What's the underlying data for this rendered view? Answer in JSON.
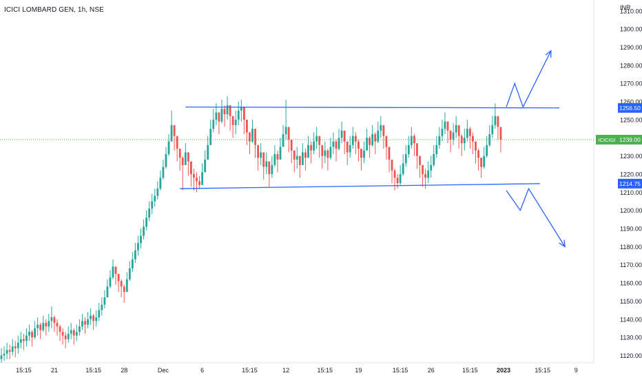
{
  "title": "ICICI LOMBARD GEN, 1h, NSE",
  "currency": "INR",
  "colors": {
    "up": "#26a69a",
    "down": "#ef5350",
    "trend": "#2962ff",
    "last_price": "#4caf50",
    "axis_text": "#131722"
  },
  "chart_data": {
    "type": "candlestick",
    "y_ticks": [
      1120,
      1130,
      1140,
      1150,
      1160,
      1170,
      1180,
      1190,
      1200,
      1210,
      1220,
      1230,
      1240,
      1250,
      1260,
      1270,
      1280,
      1290,
      1300,
      1310
    ],
    "y_tick_labels": [
      "1120.00",
      "1130.00",
      "1140.00",
      "1150.00",
      "1160.00",
      "1170.00",
      "1180.00",
      "1190.00",
      "1200.00",
      "1210.00",
      "1220.00",
      "1230.00",
      "1240.00",
      "1250.00",
      "1260.00",
      "1270.00",
      "1280.00",
      "1290.00",
      "1300.00",
      "1310.00"
    ],
    "ylim": [
      1116,
      1316
    ],
    "x_tick_labels": [
      "15:15",
      "21",
      "15:15",
      "28",
      "Dec",
      "6",
      "15:15",
      "12",
      "15:15",
      "19",
      "15:15",
      "26",
      "15:15",
      "2023",
      "15:15",
      "9"
    ],
    "x_tick_bold": [
      false,
      false,
      false,
      false,
      false,
      false,
      false,
      false,
      false,
      false,
      false,
      false,
      false,
      true,
      false,
      false
    ],
    "x_tick_index": [
      8,
      19,
      33,
      44,
      58,
      72,
      89,
      102,
      116,
      128,
      143,
      154,
      168,
      180,
      194,
      206
    ],
    "price_labels": [
      {
        "text": "1256.50",
        "value": 1256.5,
        "style": "trend"
      },
      {
        "text": "1214.75",
        "value": 1214.75,
        "style": "trend"
      },
      {
        "symbol": "ICICIGI",
        "text": "1239.00",
        "value": 1239,
        "style": "last"
      }
    ],
    "last_price": 1239,
    "resistance": {
      "start_bar": 66,
      "start": 1257,
      "end_bar": 200,
      "end": 1256.5
    },
    "support": {
      "start_bar": 64,
      "start": 1212,
      "end_bar": 193,
      "end": 1214.75
    },
    "arrow_up": {
      "bars": [
        181,
        184,
        187,
        197
      ],
      "values": [
        1257,
        1270,
        1257,
        1288
      ]
    },
    "arrow_down": {
      "bars": [
        181,
        186,
        189,
        202
      ],
      "values": [
        1211,
        1200,
        1212,
        1180
      ]
    },
    "closes": [
      1120,
      1121,
      1123,
      1122,
      1125,
      1124,
      1127,
      1129,
      1128,
      1131,
      1133,
      1130,
      1135,
      1137,
      1134,
      1138,
      1136,
      1139,
      1141,
      1138,
      1136,
      1133,
      1131,
      1129,
      1132,
      1134,
      1131,
      1133,
      1136,
      1139,
      1137,
      1140,
      1142,
      1139,
      1141,
      1145,
      1148,
      1152,
      1158,
      1163,
      1169,
      1165,
      1161,
      1158,
      1155,
      1162,
      1168,
      1173,
      1178,
      1182,
      1186,
      1191,
      1196,
      1201,
      1205,
      1208,
      1212,
      1218,
      1224,
      1231,
      1238,
      1247,
      1241,
      1234,
      1229,
      1225,
      1232,
      1227,
      1220,
      1218,
      1216,
      1214,
      1221,
      1228,
      1236,
      1245,
      1250,
      1254,
      1249,
      1256,
      1253,
      1258,
      1252,
      1247,
      1250,
      1255,
      1257,
      1250,
      1243,
      1238,
      1245,
      1236,
      1229,
      1232,
      1224,
      1227,
      1220,
      1225,
      1231,
      1228,
      1235,
      1242,
      1246,
      1239,
      1233,
      1228,
      1230,
      1225,
      1232,
      1229,
      1236,
      1233,
      1238,
      1241,
      1236,
      1230,
      1233,
      1229,
      1235,
      1238,
      1234,
      1240,
      1244,
      1238,
      1232,
      1236,
      1241,
      1238,
      1234,
      1229,
      1233,
      1240,
      1236,
      1242,
      1238,
      1244,
      1247,
      1241,
      1235,
      1228,
      1222,
      1218,
      1215,
      1220,
      1226,
      1231,
      1236,
      1241,
      1237,
      1230,
      1225,
      1220,
      1218,
      1222,
      1225,
      1231,
      1236,
      1241,
      1245,
      1249,
      1244,
      1239,
      1243,
      1247,
      1241,
      1237,
      1240,
      1245,
      1241,
      1238,
      1233,
      1229,
      1224,
      1230,
      1236,
      1242,
      1247,
      1252,
      1246,
      1239
    ],
    "lows": [
      1116,
      1117,
      1118,
      1118,
      1120,
      1119,
      1121,
      1124,
      1123,
      1125,
      1128,
      1125,
      1129,
      1131,
      1129,
      1133,
      1131,
      1133,
      1135,
      1133,
      1131,
      1128,
      1126,
      1124,
      1127,
      1129,
      1126,
      1128,
      1131,
      1134,
      1132,
      1135,
      1137,
      1134,
      1136,
      1139,
      1142,
      1146,
      1152,
      1157,
      1162,
      1159,
      1155,
      1152,
      1149,
      1156,
      1161,
      1166,
      1171,
      1175,
      1179,
      1184,
      1189,
      1194,
      1198,
      1202,
      1206,
      1211,
      1217,
      1223,
      1230,
      1238,
      1233,
      1227,
      1222,
      1211,
      1225,
      1219,
      1213,
      1211,
      1210,
      1212,
      1214,
      1221,
      1229,
      1237,
      1243,
      1247,
      1242,
      1248,
      1246,
      1250,
      1244,
      1240,
      1242,
      1247,
      1249,
      1242,
      1236,
      1231,
      1237,
      1229,
      1222,
      1225,
      1217,
      1220,
      1213,
      1218,
      1224,
      1221,
      1228,
      1235,
      1239,
      1232,
      1226,
      1221,
      1223,
      1218,
      1225,
      1222,
      1229,
      1226,
      1231,
      1234,
      1229,
      1223,
      1226,
      1222,
      1228,
      1231,
      1227,
      1233,
      1237,
      1231,
      1225,
      1229,
      1234,
      1231,
      1227,
      1222,
      1226,
      1233,
      1229,
      1235,
      1231,
      1237,
      1240,
      1234,
      1228,
      1221,
      1215,
      1211,
      1212,
      1214,
      1219,
      1224,
      1229,
      1234,
      1230,
      1223,
      1218,
      1213,
      1212,
      1215,
      1218,
      1224,
      1229,
      1234,
      1238,
      1242,
      1237,
      1232,
      1236,
      1240,
      1234,
      1230,
      1233,
      1238,
      1234,
      1231,
      1226,
      1222,
      1218,
      1223,
      1229,
      1235,
      1240,
      1245,
      1239,
      1232
    ],
    "highs": [
      1124,
      1125,
      1127,
      1126,
      1129,
      1128,
      1131,
      1133,
      1132,
      1135,
      1137,
      1134,
      1139,
      1141,
      1138,
      1142,
      1140,
      1143,
      1147,
      1142,
      1140,
      1137,
      1135,
      1133,
      1136,
      1138,
      1135,
      1137,
      1140,
      1143,
      1141,
      1144,
      1146,
      1143,
      1145,
      1149,
      1152,
      1156,
      1162,
      1167,
      1173,
      1169,
      1165,
      1162,
      1159,
      1166,
      1172,
      1177,
      1182,
      1186,
      1190,
      1195,
      1200,
      1205,
      1209,
      1212,
      1216,
      1222,
      1228,
      1235,
      1242,
      1255,
      1246,
      1239,
      1234,
      1230,
      1237,
      1232,
      1225,
      1223,
      1221,
      1219,
      1226,
      1233,
      1241,
      1250,
      1256,
      1259,
      1254,
      1261,
      1258,
      1263,
      1257,
      1252,
      1255,
      1260,
      1261,
      1255,
      1248,
      1243,
      1250,
      1241,
      1234,
      1237,
      1229,
      1232,
      1225,
      1230,
      1236,
      1233,
      1240,
      1247,
      1261,
      1244,
      1238,
      1233,
      1235,
      1230,
      1237,
      1234,
      1241,
      1238,
      1243,
      1246,
      1241,
      1235,
      1238,
      1234,
      1240,
      1243,
      1239,
      1245,
      1249,
      1243,
      1237,
      1241,
      1246,
      1243,
      1239,
      1234,
      1238,
      1245,
      1241,
      1247,
      1243,
      1249,
      1252,
      1246,
      1240,
      1233,
      1227,
      1223,
      1220,
      1225,
      1231,
      1236,
      1241,
      1246,
      1242,
      1235,
      1230,
      1225,
      1223,
      1227,
      1230,
      1236,
      1241,
      1246,
      1250,
      1254,
      1249,
      1244,
      1248,
      1252,
      1246,
      1242,
      1245,
      1250,
      1246,
      1243,
      1238,
      1234,
      1229,
      1235,
      1241,
      1247,
      1252,
      1259,
      1251,
      1244
    ]
  }
}
